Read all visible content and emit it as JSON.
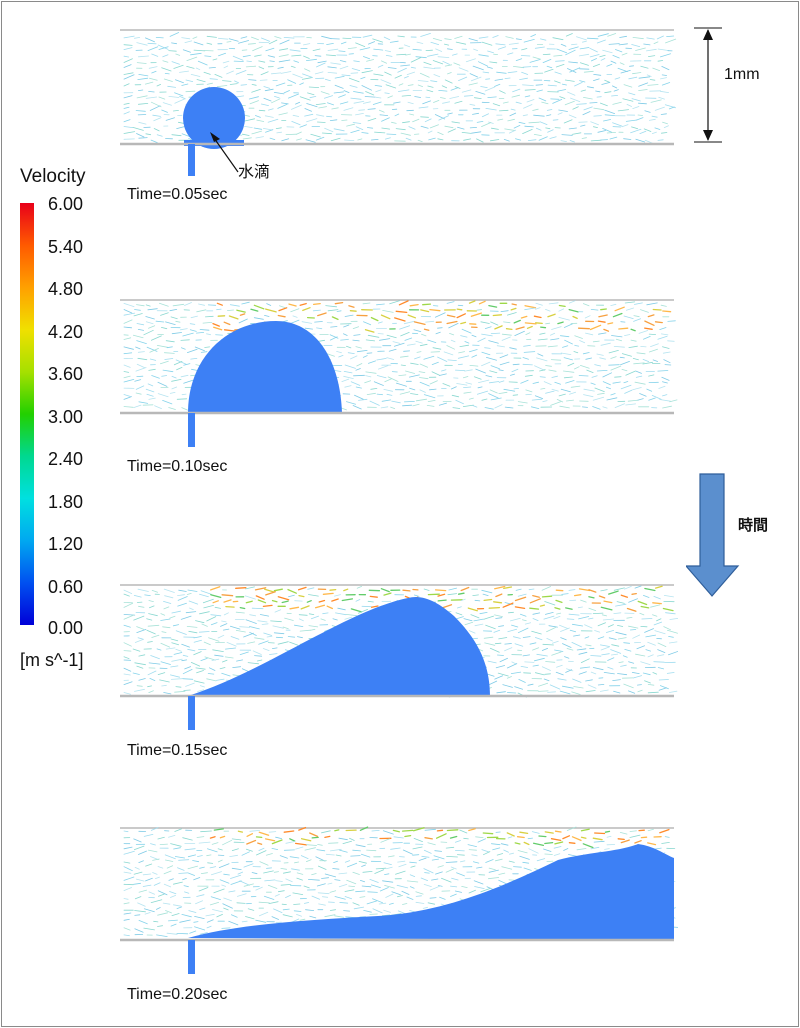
{
  "legend": {
    "title": "Velocity",
    "ticks": [
      "6.00",
      "5.40",
      "4.80",
      "4.20",
      "3.60",
      "3.00",
      "2.40",
      "1.80",
      "1.20",
      "0.60",
      "0.00"
    ],
    "unit": "[m s^-1]"
  },
  "scale_bar": {
    "label": "1mm"
  },
  "time_arrow": {
    "label": "時間"
  },
  "droplet_label": "水滴",
  "panels": [
    {
      "time": "Time=0.05sec"
    },
    {
      "time": "Time=0.10sec"
    },
    {
      "time": "Time=0.15sec"
    },
    {
      "time": "Time=0.20sec"
    }
  ],
  "colors": {
    "water": "#3d80f5",
    "wall": "#b8b8b8",
    "vector_low": "#8fd8ec",
    "vector_high": "#ff8a2a"
  }
}
